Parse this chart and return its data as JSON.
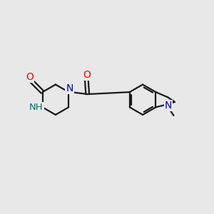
{
  "background_color": "#e8e8e8",
  "bond_color": "#1a1a1a",
  "atom_colors": {
    "O": "#ff0000",
    "N_blue": "#0000cc",
    "NH": "#007070",
    "C": "#1a1a1a"
  },
  "figsize": [
    3.0,
    3.0
  ],
  "dpi": 100
}
